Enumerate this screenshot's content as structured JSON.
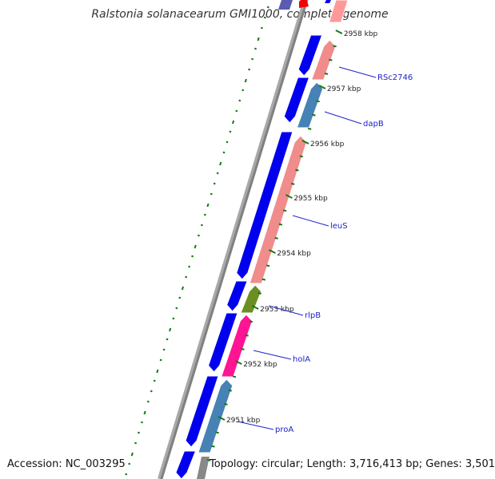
{
  "title": "Ralstonia solanacearum GMI1000, complete genome",
  "accession": "Accession: NC_003295",
  "summary": "Topology: circular; Length: 3,716,413 bp; Genes: 3,501",
  "colors": {
    "forward_cds": "#0000ee",
    "reverse_cds_salmon": "#f08c8c",
    "reverse_cds_steel": "#4682b4",
    "reverse_cds_olive": "#6b8e23",
    "reverse_cds_pink": "#ff1493",
    "backbone": "#808080",
    "ticks": "#137a13",
    "label_lines": "#1e22c8"
  },
  "ticks": [
    {
      "label": "2958 kbp"
    },
    {
      "label": "2957 kbp"
    },
    {
      "label": "2956 kbp"
    },
    {
      "label": "2955 kbp"
    },
    {
      "label": "2954 kbp"
    },
    {
      "label": "2953 kbp"
    },
    {
      "label": "2952 kbp"
    },
    {
      "label": "2951 kbp"
    }
  ],
  "genes": [
    {
      "label": "RSc2746"
    },
    {
      "label": "dapB"
    },
    {
      "label": "leuS"
    },
    {
      "label": "rlpB"
    },
    {
      "label": "holA"
    },
    {
      "label": "proA"
    }
  ]
}
